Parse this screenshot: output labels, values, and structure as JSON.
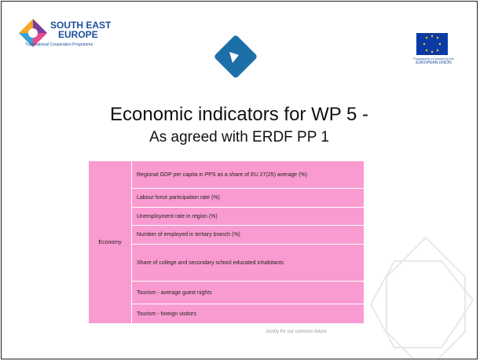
{
  "header": {
    "logo_left": {
      "line1": "SOUTH EAST",
      "line2": "EUROPE",
      "tagline": "Transnational Cooperation Programme"
    },
    "logo_right": {
      "line1": "Programme co-funded by the",
      "line2": "EUROPEAN UNION"
    }
  },
  "title": "Economic indicators for WP 5 -",
  "subtitle": "As agreed with ERDF PP 1",
  "table": {
    "group": "Economy",
    "rows": [
      "Regional GDP per capita in PPS as a share of EU 27(25) average (%)",
      "Labour force participation rate (%)",
      "Unemployment rate in region (%)",
      "Number of employed in tertiary branch (%)",
      "Share of college and secondary school educated inhabitants",
      "Tourism - average guest nights",
      "Tourism - foreign visitors"
    ]
  },
  "footer": "Jointly for our common future"
}
